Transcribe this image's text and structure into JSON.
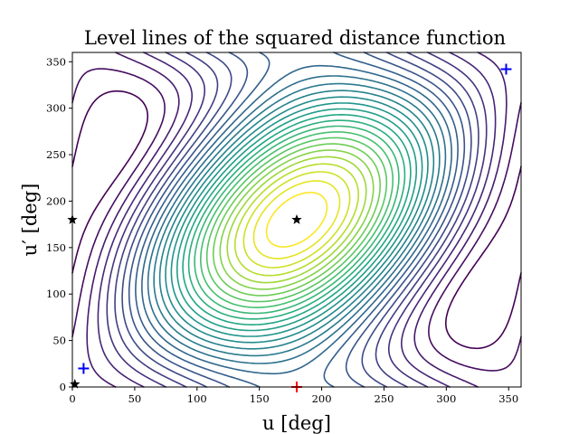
{
  "chart_data": {
    "type": "contour",
    "title": "Level lines of the squared distance function",
    "xlabel": "u [deg]",
    "ylabel": "u′ [deg]",
    "xlim": [
      0,
      360
    ],
    "ylim": [
      0,
      360
    ],
    "xticks": [
      0,
      50,
      100,
      150,
      200,
      250,
      300,
      350
    ],
    "yticks": [
      0,
      50,
      100,
      150,
      200,
      250,
      300,
      350
    ],
    "grid": false,
    "colormap": "viridis",
    "markers": [
      {
        "symbol": "star",
        "color": "#000000",
        "x": 180,
        "y": 180
      },
      {
        "symbol": "star",
        "color": "#000000",
        "x": 0,
        "y": 180
      },
      {
        "symbol": "star",
        "color": "#000000",
        "x": 2,
        "y": 3
      },
      {
        "symbol": "plus",
        "color": "#0000ff",
        "x": 348,
        "y": 342
      },
      {
        "symbol": "plus",
        "color": "#0000ff",
        "x": 9,
        "y": 20
      },
      {
        "symbol": "plus",
        "color": "#ff0000",
        "x": 180,
        "y": 0
      }
    ],
    "critical_points": {
      "minima": [
        {
          "x": 348,
          "y": 342
        },
        {
          "x": 9,
          "y": 20
        }
      ],
      "maxima": [
        {
          "x": 180,
          "y": 0
        }
      ],
      "saddles": [
        {
          "x": 180,
          "y": 180
        },
        {
          "x": 0,
          "y": 180
        },
        {
          "x": 2,
          "y": 3
        }
      ]
    }
  }
}
